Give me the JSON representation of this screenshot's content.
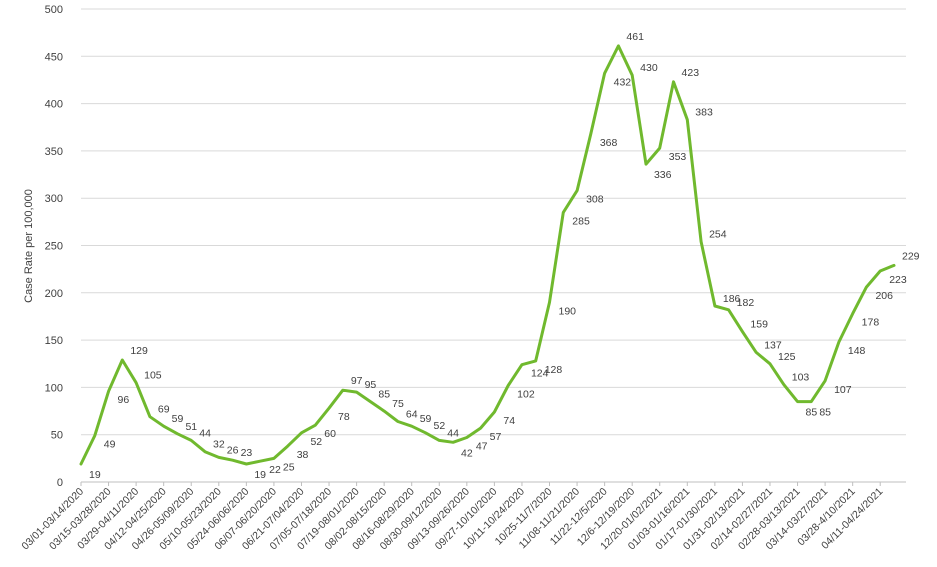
{
  "chart_data": {
    "type": "line",
    "title": "",
    "xlabel": "",
    "ylabel": "Case Rate per 100,000",
    "ylim": [
      0,
      500
    ],
    "yticks": [
      0,
      50,
      100,
      150,
      200,
      250,
      300,
      350,
      400,
      450,
      500
    ],
    "grid": true,
    "legend": "none",
    "line_color": "#70b92e",
    "x_ticklabels": [
      "03/01-03/14/2020",
      "03/15-03/28/2020",
      "03/29-04/11/2020",
      "04/12-04/25/2020",
      "04/26-05/09/2020",
      "05/10-05/23/2020",
      "05/24-06/06/2020",
      "06/07-06/20/2020",
      "06/21-07/04/2020",
      "07/05-07/18/2020",
      "07/19-08/01/2020",
      "08/02-08/15/2020",
      "08/16-08/29/2020",
      "08/30-09/12/2020",
      "09/13-09/26/2020",
      "09/27-10/10/2020",
      "10/11-10/24/2020",
      "10/25-11/7/2020",
      "11/08-11/21/2020",
      "11/22-12/5/2020",
      "12/6-12/19/2020",
      "12/20-01/02/2021",
      "01/03-01/16/2021",
      "01/17-01/30/2021",
      "01/31-02/13/2021",
      "02/14-02/27/2021",
      "02/28-03/13/2021",
      "03/14-03/27/2021",
      "03/28-4/10/2021",
      "04/11-04/24/2021"
    ],
    "series": [
      {
        "values": [
          19,
          49,
          96,
          129,
          105,
          69,
          59,
          51,
          44,
          32,
          26,
          23,
          19,
          22,
          25,
          38,
          52,
          60,
          78,
          97,
          95,
          85,
          75,
          64,
          59,
          52,
          44,
          42,
          47,
          57,
          74,
          102,
          124,
          128,
          190,
          285,
          308,
          368,
          432,
          461,
          430,
          336,
          353,
          423,
          383,
          254,
          186,
          182,
          159,
          137,
          125,
          103,
          85,
          85,
          107,
          148,
          178,
          206,
          223,
          229
        ],
        "data_labels": [
          "19",
          "49",
          "96",
          "129",
          "105",
          "69",
          "59",
          "51",
          "44",
          "32",
          "26",
          "23",
          "19",
          "22",
          "25",
          "38",
          "52",
          "60",
          "78",
          "97",
          "95",
          "85",
          "75",
          "64",
          "59",
          "52",
          "44",
          "42",
          "47",
          "57",
          "74",
          "102",
          "124",
          "128",
          "190",
          "285",
          "308",
          "368",
          "432",
          "461",
          "430",
          "336",
          "353",
          "423",
          "383",
          "254",
          "186",
          "182",
          "159",
          "137",
          "125",
          "103",
          "85",
          "85",
          "107",
          "148",
          "178",
          "206",
          "223",
          "229"
        ]
      }
    ]
  }
}
